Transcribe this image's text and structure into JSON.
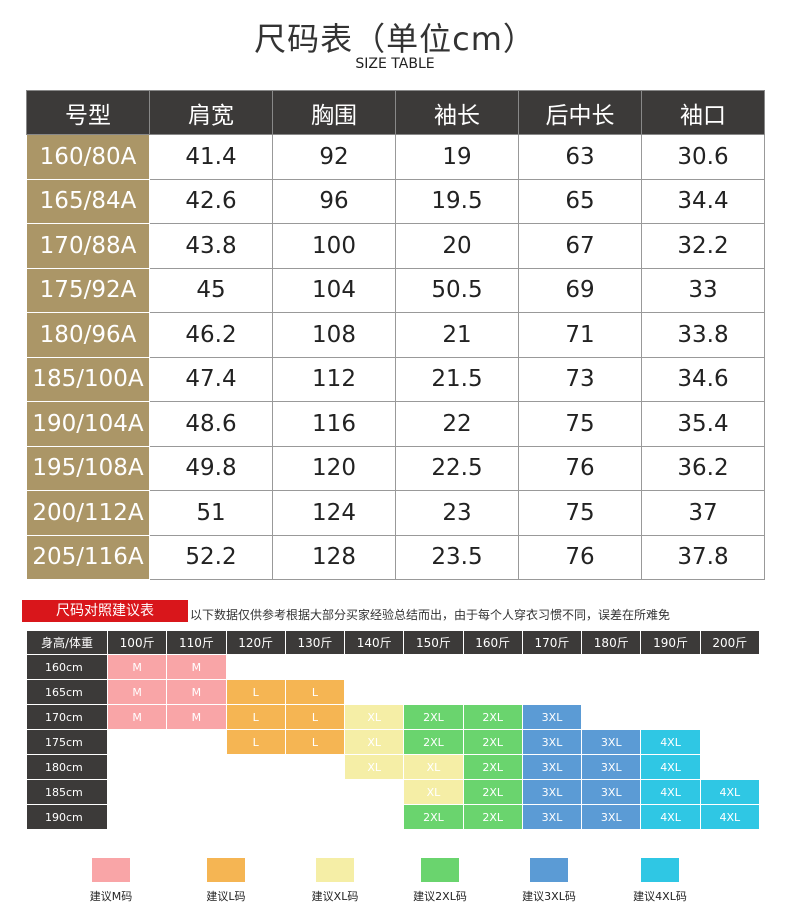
{
  "title": "尺码表（单位cm）",
  "subtitle": "SIZE TABLE",
  "size_table": {
    "headers": [
      "号型",
      "肩宽",
      "胸围",
      "袖长",
      "后中长",
      "袖口"
    ],
    "rows": [
      [
        "160/80A",
        "41.4",
        "92",
        "19",
        "63",
        "30.6"
      ],
      [
        "165/84A",
        "42.6",
        "96",
        "19.5",
        "65",
        "34.4"
      ],
      [
        "170/88A",
        "43.8",
        "100",
        "20",
        "67",
        "32.2"
      ],
      [
        "175/92A",
        "45",
        "104",
        "50.5",
        "69",
        "33"
      ],
      [
        "180/96A",
        "46.2",
        "108",
        "21",
        "71",
        "33.8"
      ],
      [
        "185/100A",
        "47.4",
        "112",
        "21.5",
        "73",
        "34.6"
      ],
      [
        "190/104A",
        "48.6",
        "116",
        "22",
        "75",
        "35.4"
      ],
      [
        "195/108A",
        "49.8",
        "120",
        "22.5",
        "76",
        "36.2"
      ],
      [
        "200/112A",
        "51",
        "124",
        "23",
        "75",
        "37"
      ],
      [
        "205/116A",
        "52.2",
        "128",
        "23.5",
        "76",
        "37.8"
      ]
    ]
  },
  "recommend": {
    "title": "尺码对照建议表",
    "note": "以下数据仅供参考根据大部分买家经验总结而出，由于每个人穿衣习惯不同，误差在所难免",
    "corner": "身高/体重",
    "weights": [
      "100斤",
      "110斤",
      "120斤",
      "130斤",
      "140斤",
      "150斤",
      "160斤",
      "170斤",
      "180斤",
      "190斤",
      "200斤"
    ],
    "rows": [
      {
        "height": "160cm",
        "cells": [
          "M",
          "M",
          "",
          "",
          "",
          "",
          "",
          "",
          "",
          "",
          ""
        ]
      },
      {
        "height": "165cm",
        "cells": [
          "M",
          "M",
          "L",
          "L",
          "",
          "",
          "",
          "",
          "",
          "",
          ""
        ]
      },
      {
        "height": "170cm",
        "cells": [
          "M",
          "M",
          "L",
          "L",
          "XL",
          "2XL",
          "2XL",
          "3XL",
          "",
          "",
          ""
        ]
      },
      {
        "height": "175cm",
        "cells": [
          "",
          "",
          "L",
          "L",
          "XL",
          "2XL",
          "2XL",
          "3XL",
          "3XL",
          "4XL",
          ""
        ]
      },
      {
        "height": "180cm",
        "cells": [
          "",
          "",
          "",
          "",
          "XL",
          "XL",
          "2XL",
          "3XL",
          "3XL",
          "4XL",
          ""
        ]
      },
      {
        "height": "185cm",
        "cells": [
          "",
          "",
          "",
          "",
          "",
          "XL",
          "2XL",
          "3XL",
          "3XL",
          "4XL",
          "4XL"
        ]
      },
      {
        "height": "190cm",
        "cells": [
          "",
          "",
          "",
          "",
          "",
          "2XL",
          "2XL",
          "3XL",
          "3XL",
          "4XL",
          "4XL"
        ]
      }
    ]
  },
  "legend": [
    {
      "label": "建议M码",
      "color": "#f9a5a7"
    },
    {
      "label": "建议L码",
      "color": "#f5b553"
    },
    {
      "label": "建议XL码",
      "color": "#f5eea6"
    },
    {
      "label": "建议2XL码",
      "color": "#6ad46e"
    },
    {
      "label": "建议3XL码",
      "color": "#5b9bd5"
    },
    {
      "label": "建议4XL码",
      "color": "#2fc7e4"
    }
  ]
}
